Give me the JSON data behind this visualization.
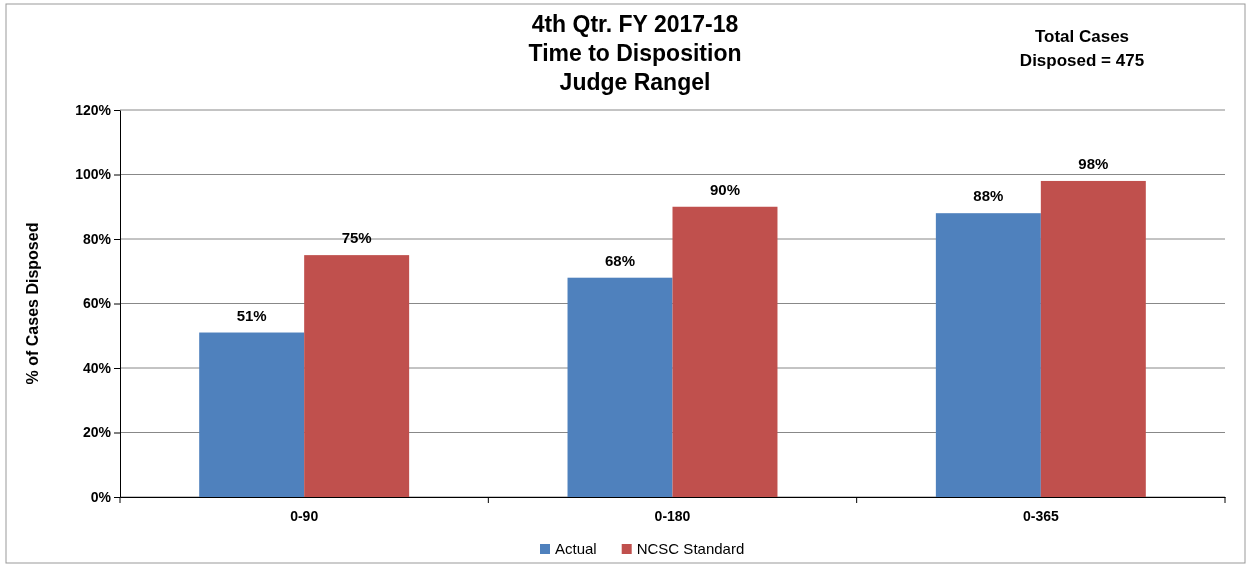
{
  "chart_data": {
    "type": "bar",
    "title": "4th Qtr. FY 2017-18\nTime to Disposition\nJudge Rangel",
    "ylabel": "% of Cases Disposed",
    "annotations": [
      "Total Cases\nDisposed = 475"
    ],
    "categories": [
      "0-90",
      "0-180",
      "0-365"
    ],
    "series": [
      {
        "name": "Actual",
        "color": "#4f81bd",
        "values": [
          51,
          68,
          88
        ],
        "value_labels": [
          "51%",
          "68%",
          "88%"
        ]
      },
      {
        "name": "NCSC Standard",
        "color": "#c0504d",
        "values": [
          75,
          90,
          98
        ],
        "value_labels": [
          "75%",
          "90%",
          "98%"
        ]
      }
    ],
    "ylim": [
      0,
      120
    ],
    "yticks": [
      {
        "value": 0,
        "label": "0%"
      },
      {
        "value": 20,
        "label": "20%"
      },
      {
        "value": 40,
        "label": "40%"
      },
      {
        "value": 60,
        "label": "60%"
      },
      {
        "value": 80,
        "label": "80%"
      },
      {
        "value": 100,
        "label": "100%"
      },
      {
        "value": 120,
        "label": "120%"
      }
    ],
    "grid": "y",
    "legend": "bottom"
  }
}
